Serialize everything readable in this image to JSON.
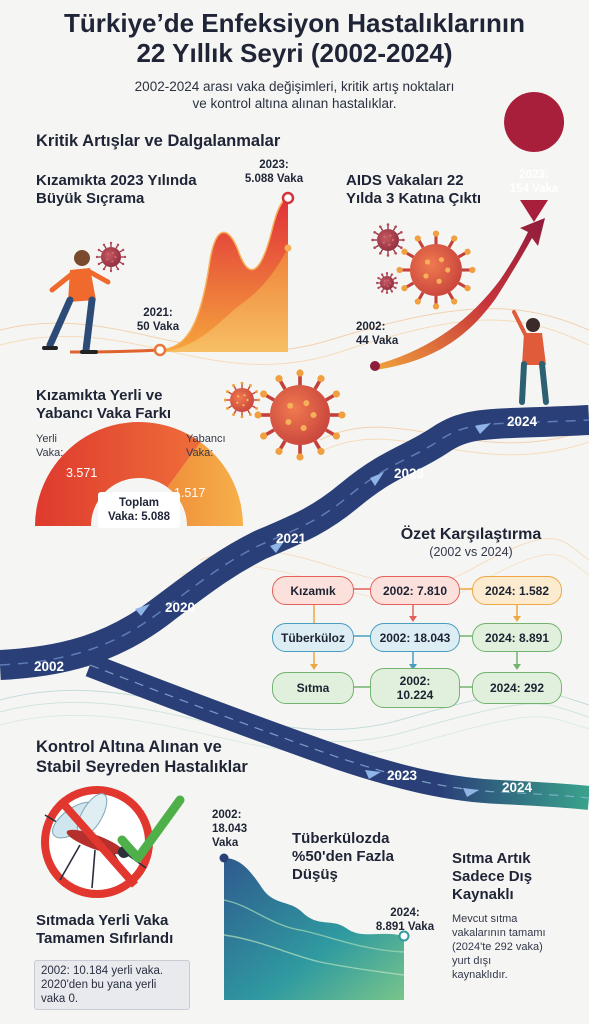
{
  "header": {
    "title_line1": "Türkiye’de Enfeksiyon Hastalıklarının",
    "title_line2": "22 Yıllık Seyri (2002-2024)",
    "subtitle_line1": "2002-2024 arası vaka değişimleri, kritik artış noktaları",
    "subtitle_line2": "ve kontrol altına alınan hastalıklar."
  },
  "critical": {
    "section_title": "Kritik Artışlar ve Dalgalanmalar",
    "measles": {
      "title_line1": "Kızamıkta 2023 Yılında",
      "title_line2": "Büyük Sıçrama",
      "start_label_line1": "2021:",
      "start_label_line2": "50 Vaka",
      "peak_label_line1": "2023:",
      "peak_label_line2": "5.088 Vaka"
    },
    "aids": {
      "title_line1": "AIDS Vakaları 22",
      "title_line2": "Yılda 3 Katına Çıktı",
      "start_label_line1": "2002:",
      "start_label_line2": "44 Vaka",
      "end_label_line1": "2023:",
      "end_label_line2": "154 Vaka"
    },
    "origin": {
      "title_line1": "Kızamıkta Yerli ve",
      "title_line2": "Yabancı Vaka Farkı",
      "domestic_label_line1": "Yerli",
      "domestic_label_line2": "Vaka:",
      "foreign_label_line1": "Yabancı",
      "foreign_label_line2": "Vaka:",
      "domestic_value": "3.571",
      "foreign_value": "1.517",
      "total_line1": "Toplam",
      "total_line2": "Vaka: 5.088",
      "domestic_share": 0.702
    }
  },
  "timeline": {
    "years": [
      "2002",
      "2020",
      "2021",
      "2023",
      "2024"
    ],
    "lower_years": [
      "2023",
      "2024"
    ]
  },
  "comparison": {
    "title": "Özet Karşılaştırma",
    "subtitle": "(2002 vs 2024)",
    "rows": [
      {
        "disease": "Kızamık",
        "v2002": "2002: 7.810",
        "v2024": "2024: 1.582",
        "color": "#e4605a",
        "fill": "#fbe0dc"
      },
      {
        "disease": "Tüberküloz",
        "v2002": "2002: 18.043",
        "v2024": "2024: 8.891",
        "color": "#4a9dbf",
        "fill": "#dcedf4"
      },
      {
        "disease": "Sıtma",
        "v2002_line1": "2002:",
        "v2002_line2": "10.224",
        "v2024": "2024: 292",
        "color": "#73b36f",
        "fill": "#e1f0dc"
      }
    ],
    "v2024_colors": {
      "k": "#efa743",
      "k_fill": "#fcebcf"
    }
  },
  "controlled": {
    "section_title_line1": "Kontrol Altına Alınan ve",
    "section_title_line2": "Stabil Seyreden Hastalıklar",
    "malaria": {
      "title_line1": "Sıtmada Yerli Vaka",
      "title_line2": "Tamamen Sıfırlandı",
      "note_line1": "2002: 10.184 yerli vaka.",
      "note_line2": "2020'den bu yana yerli",
      "note_line3": "vaka 0."
    },
    "tb": {
      "start_label_line1": "2002:",
      "start_label_line2": "18.043",
      "start_label_line3": "Vaka",
      "title_line1": "Tüberkülozda",
      "title_line2": "%50'den Fazla",
      "title_line3": "Düşüş",
      "end_label_line1": "2024:",
      "end_label_line2": "8.891 Vaka"
    },
    "foreign_source": {
      "title_line1": "Sıtma Artık",
      "title_line2": "Sadece Dış",
      "title_line3": "Kaynaklı",
      "body_line1": "Mevcut sıtma",
      "body_line2": "vakalarının tamamı",
      "body_line3": "(2024'te 292 vaka)",
      "body_line4": "yurt dışı",
      "body_line5": "kaynaklıdır."
    }
  },
  "colors": {
    "navy": "#2a3f78",
    "red": "#d7383a",
    "orange": "#f2a23a",
    "teal": "#2f9a9f",
    "green": "#6cbf7a",
    "maroon": "#9e1f3c"
  },
  "icons": [
    "virus-icon",
    "person-icon",
    "mosquito-icon",
    "no-sign-icon",
    "check-icon"
  ]
}
